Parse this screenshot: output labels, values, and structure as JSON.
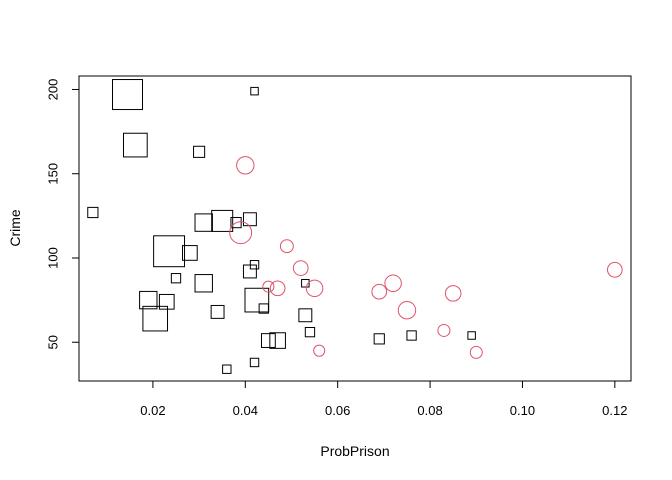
{
  "chart_data": {
    "type": "scatter",
    "title": "",
    "xlabel": "ProbPrison",
    "ylabel": "Crime",
    "xlim": [
      0.004,
      0.1235
    ],
    "ylim": [
      27,
      208
    ],
    "xticks": [
      0.02,
      0.04,
      0.06,
      0.08,
      0.1,
      0.12
    ],
    "xtick_labels": [
      "0.02",
      "0.04",
      "0.06",
      "0.08",
      "0.10",
      "0.12"
    ],
    "yticks": [
      50,
      100,
      150,
      200
    ],
    "ytick_labels": [
      "50",
      "100",
      "150",
      "200"
    ],
    "grid": false,
    "legend": "none",
    "series": [
      {
        "marker": "square",
        "color": "#000000",
        "points": [
          {
            "x": 0.0145,
            "y": 197,
            "size": 3.0
          },
          {
            "x": 0.0162,
            "y": 167,
            "size": 2.3
          },
          {
            "x": 0.03,
            "y": 163,
            "size": 0.9
          },
          {
            "x": 0.042,
            "y": 199,
            "size": 0.5
          },
          {
            "x": 0.007,
            "y": 127,
            "size": 0.8
          },
          {
            "x": 0.031,
            "y": 121,
            "size": 1.6
          },
          {
            "x": 0.035,
            "y": 122,
            "size": 2.0
          },
          {
            "x": 0.038,
            "y": 121,
            "size": 0.8
          },
          {
            "x": 0.041,
            "y": 123,
            "size": 1.1
          },
          {
            "x": 0.0235,
            "y": 104,
            "size": 3.1
          },
          {
            "x": 0.028,
            "y": 103,
            "size": 1.3
          },
          {
            "x": 0.025,
            "y": 88,
            "size": 0.7
          },
          {
            "x": 0.031,
            "y": 85,
            "size": 1.6
          },
          {
            "x": 0.041,
            "y": 92,
            "size": 1.1
          },
          {
            "x": 0.042,
            "y": 96,
            "size": 0.6
          },
          {
            "x": 0.019,
            "y": 75,
            "size": 1.6
          },
          {
            "x": 0.023,
            "y": 74,
            "size": 1.3
          },
          {
            "x": 0.0205,
            "y": 64,
            "size": 2.4
          },
          {
            "x": 0.034,
            "y": 68,
            "size": 1.1
          },
          {
            "x": 0.0425,
            "y": 75,
            "size": 2.3
          },
          {
            "x": 0.044,
            "y": 70,
            "size": 0.7
          },
          {
            "x": 0.053,
            "y": 85,
            "size": 0.5
          },
          {
            "x": 0.053,
            "y": 66,
            "size": 1.1
          },
          {
            "x": 0.054,
            "y": 56,
            "size": 0.7
          },
          {
            "x": 0.045,
            "y": 51,
            "size": 1.2
          },
          {
            "x": 0.047,
            "y": 51,
            "size": 1.4
          },
          {
            "x": 0.069,
            "y": 52,
            "size": 0.8
          },
          {
            "x": 0.076,
            "y": 54,
            "size": 0.7
          },
          {
            "x": 0.089,
            "y": 54,
            "size": 0.5
          },
          {
            "x": 0.036,
            "y": 34,
            "size": 0.6
          },
          {
            "x": 0.042,
            "y": 38,
            "size": 0.6
          }
        ]
      },
      {
        "marker": "circle",
        "color": "#DF536B",
        "points": [
          {
            "x": 0.04,
            "y": 155,
            "size": 1.6
          },
          {
            "x": 0.039,
            "y": 115,
            "size": 2.1
          },
          {
            "x": 0.049,
            "y": 107,
            "size": 1.1
          },
          {
            "x": 0.052,
            "y": 94,
            "size": 1.3
          },
          {
            "x": 0.045,
            "y": 83,
            "size": 0.9
          },
          {
            "x": 0.047,
            "y": 82,
            "size": 1.3
          },
          {
            "x": 0.055,
            "y": 82,
            "size": 1.5
          },
          {
            "x": 0.069,
            "y": 80,
            "size": 1.3
          },
          {
            "x": 0.072,
            "y": 85,
            "size": 1.5
          },
          {
            "x": 0.085,
            "y": 79,
            "size": 1.4
          },
          {
            "x": 0.075,
            "y": 69,
            "size": 1.6
          },
          {
            "x": 0.083,
            "y": 57,
            "size": 1.0
          },
          {
            "x": 0.056,
            "y": 45,
            "size": 0.9
          },
          {
            "x": 0.09,
            "y": 44,
            "size": 1.0
          },
          {
            "x": 0.12,
            "y": 93,
            "size": 1.3
          }
        ]
      }
    ]
  }
}
